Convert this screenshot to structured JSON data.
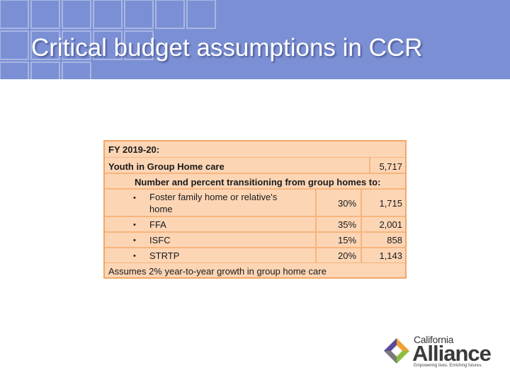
{
  "slide": {
    "title": "Critical budget assumptions in CCR"
  },
  "table": {
    "fy_label": "FY 2019-20:",
    "youth_label": "Youth in Group Home care",
    "youth_value": "5,717",
    "transition_header": "Number and percent transitioning from group homes to:",
    "bullet": "•",
    "rows": [
      {
        "label_line1": "Foster family home or relative's",
        "label_line2": "home",
        "percent": "30%",
        "count": "1,715"
      },
      {
        "label": "FFA",
        "percent": "35%",
        "count": "2,001"
      },
      {
        "label": "ISFC",
        "percent": "15%",
        "count": "858"
      },
      {
        "label": "STRTP",
        "percent": "20%",
        "count": "1,143"
      }
    ],
    "footnote": "Assumes 2% year-to-year growth in group home care"
  },
  "logo": {
    "line1": "California",
    "line2": "Alliance",
    "tagline": "Empowering lives. Enriching futures.",
    "colors": {
      "purple": "#5b4a9b",
      "green": "#8cbf3f",
      "orange": "#f0a030",
      "gray": "#7a7a7a"
    }
  }
}
